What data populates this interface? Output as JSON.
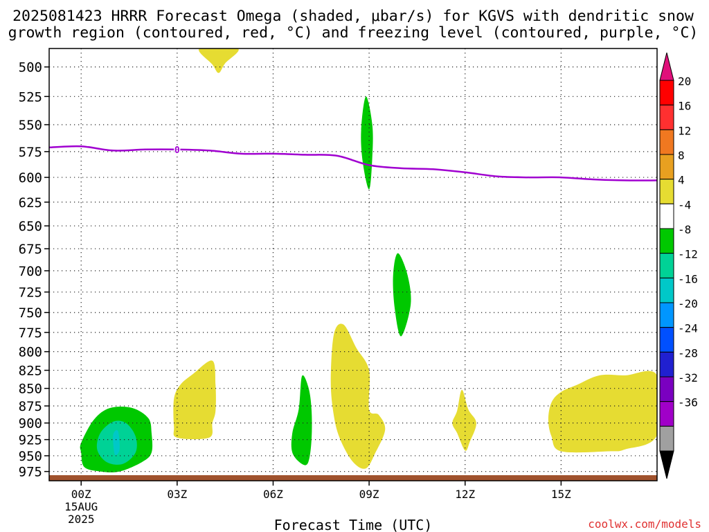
{
  "title_line1": "2025081423 HRRR Forecast Omega (shaded, μbar/s) for KGVS with dendritic snow",
  "title_line2": "growth region (contoured, red, °C) and freezing level (contoured, purple, °C)",
  "xlabel": "Forecast Time (UTC)",
  "watermark": "coolwx.com/models",
  "chart_data": {
    "type": "area",
    "x_ticks": [
      {
        "hour": 0,
        "label": "00Z",
        "sub": [
          "15AUG",
          "2025"
        ]
      },
      {
        "hour": 3,
        "label": "03Z"
      },
      {
        "hour": 6,
        "label": "06Z"
      },
      {
        "hour": 9,
        "label": "09Z"
      },
      {
        "hour": 12,
        "label": "12Z"
      },
      {
        "hour": 15,
        "label": "15Z"
      }
    ],
    "xlim_hours": [
      -1,
      18
    ],
    "y_ticks": [
      500,
      525,
      550,
      575,
      600,
      625,
      650,
      675,
      700,
      725,
      750,
      775,
      800,
      825,
      850,
      875,
      900,
      925,
      950,
      975
    ],
    "ylim_hPa": [
      990,
      485
    ],
    "y_scale": "log-pressure",
    "grid": "dotted",
    "freezing_level": {
      "label": "0",
      "label_hour": 3,
      "color": "#a000d0",
      "points": [
        [
          -1,
          571
        ],
        [
          0,
          570
        ],
        [
          1,
          574
        ],
        [
          2,
          573
        ],
        [
          3,
          573
        ],
        [
          4,
          574
        ],
        [
          5,
          577
        ],
        [
          6,
          577
        ],
        [
          7,
          578
        ],
        [
          8,
          579
        ],
        [
          9,
          588
        ],
        [
          10,
          591
        ],
        [
          11,
          592
        ],
        [
          12,
          595
        ],
        [
          13,
          599
        ],
        [
          14,
          600
        ],
        [
          15,
          600
        ],
        [
          16,
          602
        ],
        [
          17,
          603
        ],
        [
          18,
          603
        ]
      ]
    },
    "surface_color": "#a0522d",
    "colorbar": {
      "ticks": [
        "20",
        "16",
        "12",
        "8",
        "4",
        "-4",
        "-8",
        "-12",
        "-16",
        "-20",
        "-24",
        "-28",
        "-32",
        "-36"
      ],
      "bins": [
        "#ff0000",
        "#ff3030",
        "#f07820",
        "#e8a020",
        "#e6dc32",
        "#ffffff",
        "#00c800",
        "#00d296",
        "#00c8c8",
        "#0096ff",
        "#0050ff",
        "#2020d0",
        "#7a00c0",
        "#a000c8",
        "#a0a0a0"
      ],
      "top_triangle": "#e0107a",
      "bottom_triangle": "#000000"
    },
    "omega_regions": [
      {
        "color": "#e6dc32",
        "points": [
          [
            3.7,
            485
          ],
          [
            4.9,
            485
          ],
          [
            4.5,
            497
          ],
          [
            4.3,
            505
          ],
          [
            4.1,
            498
          ]
        ]
      },
      {
        "color": "#00c800",
        "points": [
          [
            8.9,
            525
          ],
          [
            9.1,
            550
          ],
          [
            9.1,
            580
          ],
          [
            9.0,
            612
          ],
          [
            8.8,
            585
          ],
          [
            8.75,
            555
          ]
        ]
      },
      {
        "color": "#00c800",
        "points": [
          [
            9.9,
            680
          ],
          [
            10.2,
            705
          ],
          [
            10.3,
            740
          ],
          [
            10.0,
            780
          ],
          [
            9.8,
            745
          ],
          [
            9.75,
            705
          ]
        ]
      },
      {
        "color": "#e6dc32",
        "points": [
          [
            2.9,
            865
          ],
          [
            3.1,
            845
          ],
          [
            3.5,
            830
          ],
          [
            4.1,
            812
          ],
          [
            4.2,
            845
          ],
          [
            4.2,
            882
          ],
          [
            4.1,
            900
          ],
          [
            4.0,
            922
          ],
          [
            3.0,
            922
          ],
          [
            2.9,
            905
          ]
        ]
      },
      {
        "color": "#e6dc32",
        "points": [
          [
            7.9,
            777
          ],
          [
            8.2,
            765
          ],
          [
            8.6,
            795
          ],
          [
            9.0,
            825
          ],
          [
            9.0,
            880
          ],
          [
            9.3,
            888
          ],
          [
            9.5,
            910
          ],
          [
            9.2,
            945
          ],
          [
            8.9,
            970
          ],
          [
            8.5,
            960
          ],
          [
            8.1,
            925
          ],
          [
            7.9,
            890
          ],
          [
            7.8,
            840
          ]
        ]
      },
      {
        "color": "#00c800",
        "points": [
          [
            6.9,
            833
          ],
          [
            7.1,
            848
          ],
          [
            7.2,
            880
          ],
          [
            7.2,
            925
          ],
          [
            7.1,
            960
          ],
          [
            6.9,
            963
          ],
          [
            6.6,
            945
          ],
          [
            6.6,
            915
          ],
          [
            6.8,
            880
          ]
        ]
      },
      {
        "color": "#e6dc32",
        "points": [
          [
            11.9,
            852
          ],
          [
            12.1,
            880
          ],
          [
            12.35,
            900
          ],
          [
            12.15,
            928
          ],
          [
            12.0,
            942
          ],
          [
            11.75,
            915
          ],
          [
            11.6,
            900
          ],
          [
            11.75,
            882
          ]
        ]
      },
      {
        "color": "#e6dc32",
        "points": [
          [
            15.0,
            855
          ],
          [
            15.5,
            845
          ],
          [
            16.2,
            832
          ],
          [
            17.0,
            832
          ],
          [
            18.0,
            832
          ],
          [
            18.0,
            918
          ],
          [
            17.0,
            940
          ],
          [
            16.5,
            943
          ],
          [
            15.0,
            943
          ],
          [
            14.7,
            920
          ],
          [
            14.6,
            895
          ],
          [
            14.7,
            870
          ]
        ]
      },
      {
        "color": "#00c800",
        "points": [
          [
            0.0,
            930
          ],
          [
            0.4,
            895
          ],
          [
            0.9,
            878
          ],
          [
            1.6,
            878
          ],
          [
            2.1,
            893
          ],
          [
            2.2,
            915
          ],
          [
            2.2,
            945
          ],
          [
            1.9,
            960
          ],
          [
            1.2,
            975
          ],
          [
            0.6,
            975
          ],
          [
            0.1,
            968
          ],
          [
            0.0,
            945
          ]
        ]
      },
      {
        "color": "#00d296",
        "points": [
          [
            0.6,
            915
          ],
          [
            1.0,
            898
          ],
          [
            1.4,
            900
          ],
          [
            1.7,
            920
          ],
          [
            1.7,
            945
          ],
          [
            1.3,
            963
          ],
          [
            0.8,
            960
          ],
          [
            0.5,
            940
          ]
        ]
      },
      {
        "color": "#00c8c8",
        "points": [
          [
            1.0,
            918
          ],
          [
            1.15,
            912
          ],
          [
            1.2,
            940
          ],
          [
            1.05,
            948
          ]
        ]
      }
    ]
  }
}
